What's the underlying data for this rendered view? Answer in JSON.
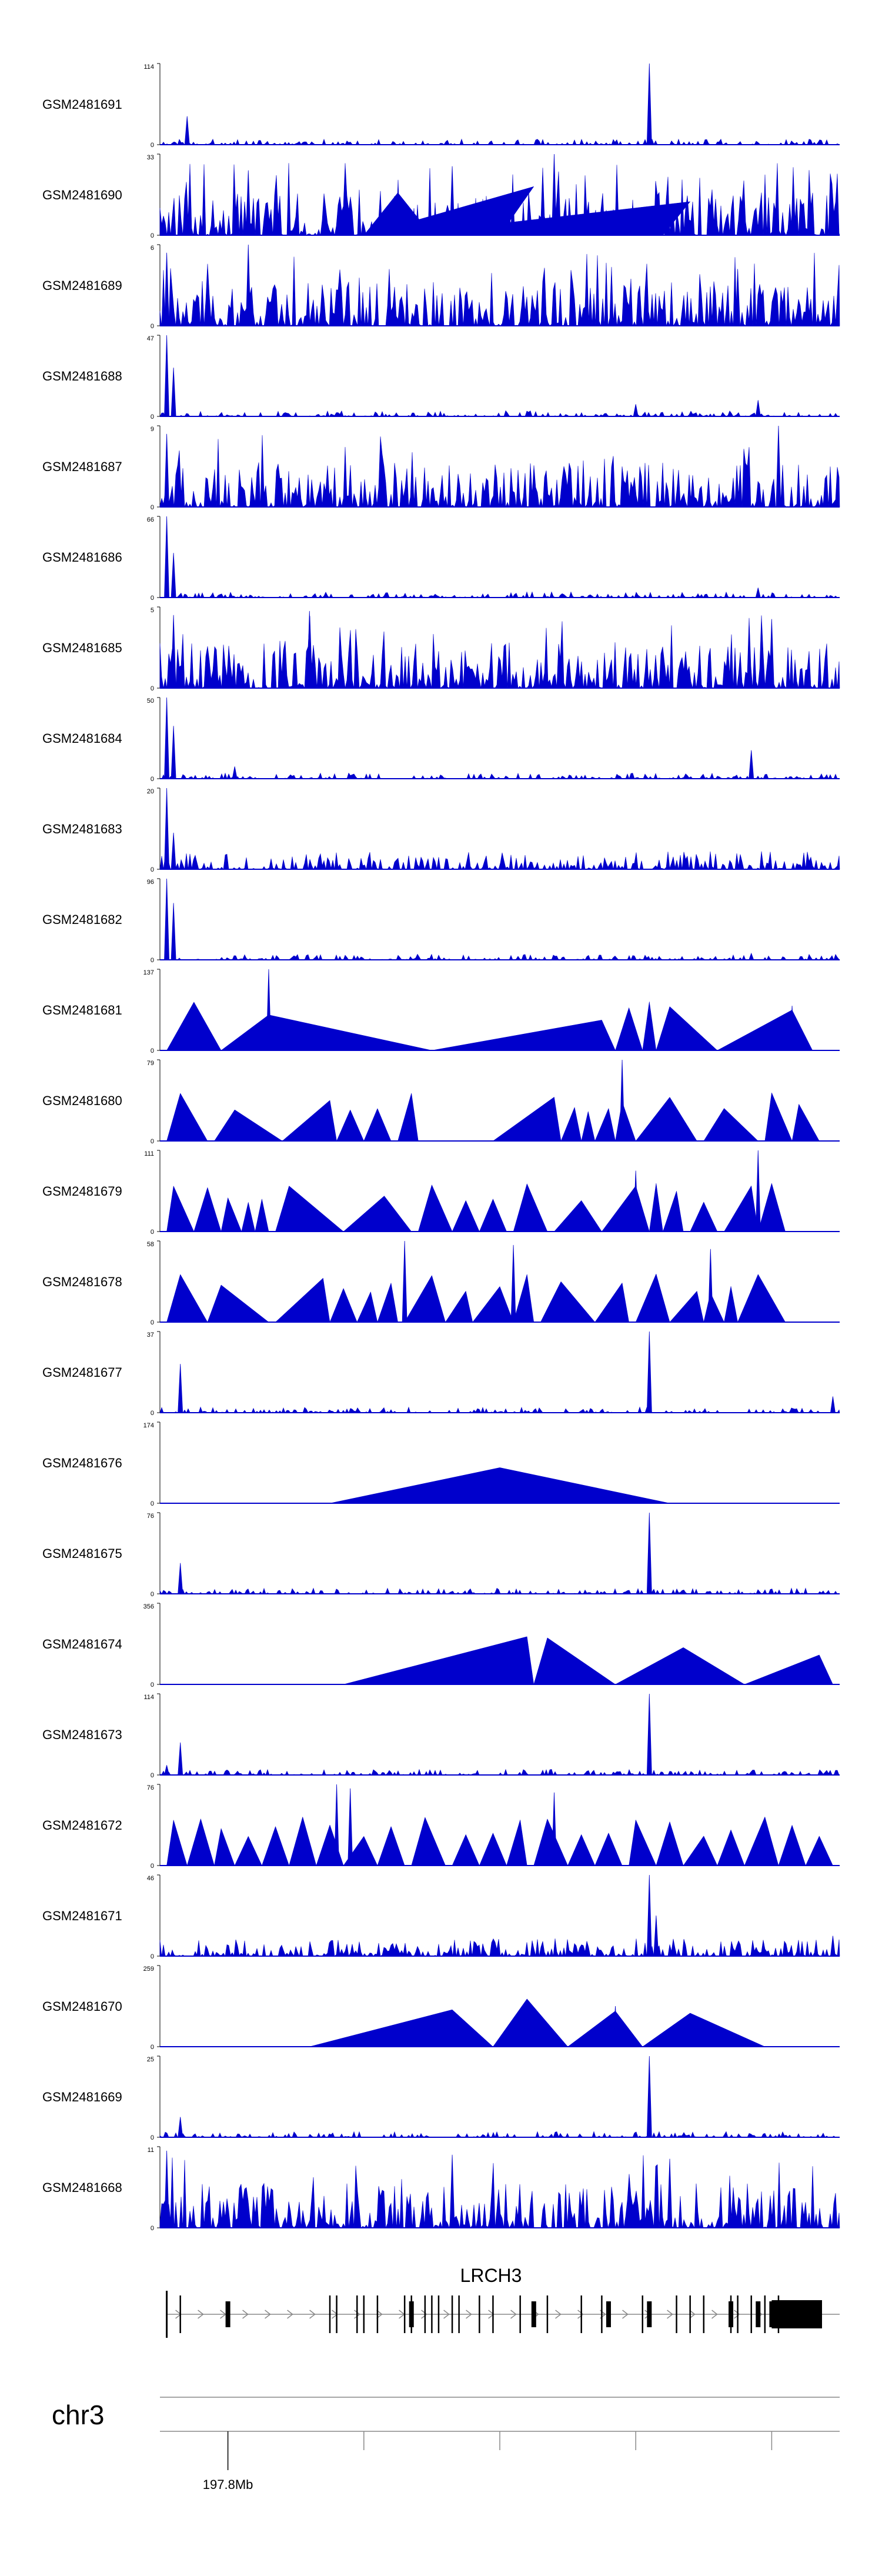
{
  "chart_data": {
    "type": "area",
    "title": "",
    "xlabel": "",
    "ylabel": "",
    "fill_color": "#0000cc",
    "tracks": [
      {
        "name": "GSM2481691",
        "ymin": "0",
        "ymax": "114",
        "pattern": "sparse",
        "spikes": [
          [
            0.04,
            0.35
          ],
          [
            0.72,
            1.0
          ]
        ],
        "triangles": []
      },
      {
        "name": "GSM2481690",
        "ymin": "0",
        "ymax": "33",
        "pattern": "dense",
        "spikes": [
          [
            0.58,
            1.0
          ],
          [
            0.43,
            0.85
          ],
          [
            0.13,
            0.8
          ]
        ],
        "triangles": [
          [
            0.3,
            0.35,
            0.4
          ],
          [
            0.5,
            0.55,
            0.3
          ],
          [
            0.74,
            0.78,
            0.35
          ]
        ]
      },
      {
        "name": "GSM2481689",
        "ymin": "0",
        "ymax": "6",
        "pattern": "dense",
        "spikes": [
          [
            0.13,
            1.0
          ],
          [
            0.01,
            0.9
          ],
          [
            0.85,
            0.7
          ]
        ],
        "triangles": []
      },
      {
        "name": "GSM2481688",
        "ymin": "0",
        "ymax": "47",
        "pattern": "sparse",
        "spikes": [
          [
            0.01,
            1.0
          ],
          [
            0.02,
            0.6
          ],
          [
            0.7,
            0.15
          ],
          [
            0.88,
            0.2
          ]
        ],
        "triangles": []
      },
      {
        "name": "GSM2481687",
        "ymin": "0",
        "ymax": "9",
        "pattern": "dense",
        "spikes": [
          [
            0.01,
            0.9
          ],
          [
            0.91,
            1.0
          ]
        ],
        "triangles": []
      },
      {
        "name": "GSM2481686",
        "ymin": "0",
        "ymax": "66",
        "pattern": "sparse",
        "spikes": [
          [
            0.01,
            1.0
          ],
          [
            0.02,
            0.55
          ],
          [
            0.88,
            0.12
          ]
        ],
        "triangles": []
      },
      {
        "name": "GSM2481685",
        "ymin": "0",
        "ymax": "5",
        "pattern": "dense",
        "spikes": [
          [
            0.02,
            0.9
          ],
          [
            0.22,
            0.95
          ],
          [
            0.9,
            0.85
          ]
        ],
        "triangles": []
      },
      {
        "name": "GSM2481684",
        "ymin": "0",
        "ymax": "50",
        "pattern": "sparse",
        "spikes": [
          [
            0.01,
            1.0
          ],
          [
            0.02,
            0.65
          ],
          [
            0.11,
            0.15
          ],
          [
            0.87,
            0.35
          ]
        ],
        "triangles": []
      },
      {
        "name": "GSM2481683",
        "ymin": "0",
        "ymax": "20",
        "pattern": "medium",
        "spikes": [
          [
            0.01,
            1.0
          ],
          [
            0.02,
            0.45
          ]
        ],
        "triangles": []
      },
      {
        "name": "GSM2481682",
        "ymin": "0",
        "ymax": "96",
        "pattern": "sparse",
        "spikes": [
          [
            0.01,
            1.0
          ],
          [
            0.02,
            0.7
          ],
          [
            0.87,
            0.08
          ]
        ],
        "triangles": []
      },
      {
        "name": "GSM2481681",
        "ymin": "0",
        "ymax": "137",
        "pattern": "none",
        "spikes": [
          [
            0.16,
            1.0
          ],
          [
            0.93,
            0.55
          ]
        ],
        "triangles": [
          [
            0.01,
            0.05,
            0.09
          ],
          [
            0.09,
            0.16,
            0.4
          ],
          [
            0.4,
            0.65,
            0.67
          ],
          [
            0.67,
            0.69,
            0.71
          ],
          [
            0.71,
            0.72,
            0.73
          ],
          [
            0.73,
            0.75,
            0.82
          ],
          [
            0.82,
            0.93,
            0.96
          ]
        ]
      },
      {
        "name": "GSM2481680",
        "ymin": "0",
        "ymax": "79",
        "pattern": "none",
        "spikes": [
          [
            0.68,
            1.0
          ],
          [
            0.37,
            0.55
          ]
        ],
        "triangles": [
          [
            0.01,
            0.03,
            0.07
          ],
          [
            0.08,
            0.11,
            0.18
          ],
          [
            0.18,
            0.25,
            0.26
          ],
          [
            0.26,
            0.28,
            0.3
          ],
          [
            0.3,
            0.32,
            0.34
          ],
          [
            0.35,
            0.37,
            0.38
          ],
          [
            0.49,
            0.58,
            0.59
          ],
          [
            0.59,
            0.61,
            0.62
          ],
          [
            0.62,
            0.63,
            0.64
          ],
          [
            0.64,
            0.66,
            0.67
          ],
          [
            0.67,
            0.68,
            0.7
          ],
          [
            0.7,
            0.75,
            0.79
          ],
          [
            0.8,
            0.83,
            0.88
          ],
          [
            0.89,
            0.9,
            0.93
          ],
          [
            0.93,
            0.94,
            0.97
          ]
        ]
      },
      {
        "name": "GSM2481679",
        "ymin": "0",
        "ymax": "111",
        "pattern": "none",
        "spikes": [
          [
            0.88,
            1.0
          ],
          [
            0.7,
            0.75
          ]
        ],
        "triangles": [
          [
            0.01,
            0.02,
            0.05
          ],
          [
            0.05,
            0.07,
            0.09
          ],
          [
            0.09,
            0.1,
            0.12
          ],
          [
            0.12,
            0.13,
            0.14
          ],
          [
            0.14,
            0.15,
            0.16
          ],
          [
            0.17,
            0.19,
            0.27
          ],
          [
            0.27,
            0.33,
            0.37
          ],
          [
            0.38,
            0.4,
            0.43
          ],
          [
            0.43,
            0.45,
            0.47
          ],
          [
            0.47,
            0.49,
            0.51
          ],
          [
            0.52,
            0.54,
            0.57
          ],
          [
            0.58,
            0.62,
            0.65
          ],
          [
            0.65,
            0.7,
            0.72
          ],
          [
            0.72,
            0.73,
            0.74
          ],
          [
            0.74,
            0.76,
            0.77
          ],
          [
            0.78,
            0.8,
            0.82
          ],
          [
            0.83,
            0.87,
            0.88
          ],
          [
            0.88,
            0.9,
            0.92
          ]
        ]
      },
      {
        "name": "GSM2481678",
        "ymin": "0",
        "ymax": "58",
        "pattern": "none",
        "spikes": [
          [
            0.36,
            1.0
          ],
          [
            0.52,
            0.95
          ],
          [
            0.81,
            0.9
          ]
        ],
        "triangles": [
          [
            0.01,
            0.03,
            0.07
          ],
          [
            0.07,
            0.09,
            0.16
          ],
          [
            0.17,
            0.24,
            0.25
          ],
          [
            0.25,
            0.27,
            0.29
          ],
          [
            0.29,
            0.31,
            0.32
          ],
          [
            0.32,
            0.34,
            0.35
          ],
          [
            0.36,
            0.4,
            0.42
          ],
          [
            0.42,
            0.45,
            0.46
          ],
          [
            0.46,
            0.5,
            0.52
          ],
          [
            0.52,
            0.54,
            0.55
          ],
          [
            0.56,
            0.59,
            0.64
          ],
          [
            0.64,
            0.68,
            0.69
          ],
          [
            0.7,
            0.73,
            0.75
          ],
          [
            0.75,
            0.79,
            0.8
          ],
          [
            0.8,
            0.81,
            0.83
          ],
          [
            0.83,
            0.84,
            0.85
          ],
          [
            0.85,
            0.88,
            0.92
          ]
        ]
      },
      {
        "name": "GSM2481677",
        "ymin": "0",
        "ymax": "37",
        "pattern": "sparse",
        "spikes": [
          [
            0.03,
            0.6
          ],
          [
            0.72,
            1.0
          ],
          [
            0.99,
            0.2
          ]
        ],
        "triangles": []
      },
      {
        "name": "GSM2481676",
        "ymin": "0",
        "ymax": "174",
        "pattern": "none",
        "spikes": [],
        "triangles": [
          [
            0.25,
            0.5,
            0.75
          ]
        ]
      },
      {
        "name": "GSM2481675",
        "ymin": "0",
        "ymax": "76",
        "pattern": "sparse",
        "spikes": [
          [
            0.03,
            0.38
          ],
          [
            0.72,
            1.0
          ]
        ],
        "triangles": []
      },
      {
        "name": "GSM2481674",
        "ymin": "0",
        "ymax": "356",
        "pattern": "none",
        "spikes": [],
        "triangles": [
          [
            0.27,
            0.54,
            0.55
          ],
          [
            0.55,
            0.57,
            0.67
          ],
          [
            0.67,
            0.77,
            0.86
          ],
          [
            0.86,
            0.97,
            0.99
          ]
        ]
      },
      {
        "name": "GSM2481673",
        "ymin": "0",
        "ymax": "114",
        "pattern": "sparse",
        "spikes": [
          [
            0.72,
            1.0
          ],
          [
            0.03,
            0.4
          ],
          [
            0.01,
            0.12
          ]
        ],
        "triangles": []
      },
      {
        "name": "GSM2481672",
        "ymin": "0",
        "ymax": "76",
        "pattern": "none",
        "spikes": [
          [
            0.26,
            1.0
          ],
          [
            0.28,
            0.95
          ],
          [
            0.58,
            0.9
          ]
        ],
        "triangles": [
          [
            0.01,
            0.02,
            0.04
          ],
          [
            0.04,
            0.06,
            0.08
          ],
          [
            0.08,
            0.09,
            0.11
          ],
          [
            0.11,
            0.13,
            0.15
          ],
          [
            0.15,
            0.17,
            0.19
          ],
          [
            0.19,
            0.21,
            0.23
          ],
          [
            0.23,
            0.25,
            0.27
          ],
          [
            0.27,
            0.3,
            0.32
          ],
          [
            0.32,
            0.34,
            0.36
          ],
          [
            0.37,
            0.39,
            0.42
          ],
          [
            0.43,
            0.45,
            0.47
          ],
          [
            0.47,
            0.49,
            0.51
          ],
          [
            0.51,
            0.53,
            0.54
          ],
          [
            0.55,
            0.57,
            0.6
          ],
          [
            0.6,
            0.62,
            0.64
          ],
          [
            0.64,
            0.66,
            0.68
          ],
          [
            0.69,
            0.7,
            0.73
          ],
          [
            0.73,
            0.75,
            0.77
          ],
          [
            0.77,
            0.8,
            0.82
          ],
          [
            0.82,
            0.84,
            0.86
          ],
          [
            0.86,
            0.89,
            0.91
          ],
          [
            0.91,
            0.93,
            0.95
          ],
          [
            0.95,
            0.97,
            0.99
          ]
        ]
      },
      {
        "name": "GSM2481671",
        "ymin": "0",
        "ymax": "46",
        "pattern": "medium",
        "spikes": [
          [
            0.72,
            1.0
          ],
          [
            0.73,
            0.5
          ],
          [
            0.99,
            0.25
          ]
        ],
        "triangles": []
      },
      {
        "name": "GSM2481670",
        "ymin": "0",
        "ymax": "259",
        "pattern": "none",
        "spikes": [
          [
            0.67,
            0.5
          ]
        ],
        "triangles": [
          [
            0.22,
            0.43,
            0.49
          ],
          [
            0.49,
            0.54,
            0.6
          ],
          [
            0.6,
            0.67,
            0.71
          ],
          [
            0.71,
            0.78,
            0.89
          ]
        ]
      },
      {
        "name": "GSM2481669",
        "ymin": "0",
        "ymax": "25",
        "pattern": "sparse",
        "spikes": [
          [
            0.72,
            1.0
          ],
          [
            0.03,
            0.25
          ]
        ],
        "triangles": []
      },
      {
        "name": "GSM2481668",
        "ymin": "0",
        "ymax": "11",
        "pattern": "dense",
        "spikes": [
          [
            0.01,
            0.95
          ],
          [
            0.43,
            0.9
          ],
          [
            0.75,
            0.85
          ]
        ],
        "triangles": []
      }
    ],
    "gene_track": {
      "gene_name": "LRCH3",
      "exons_thin": [
        0.03,
        0.25,
        0.26,
        0.29,
        0.3,
        0.32,
        0.36,
        0.37,
        0.39,
        0.4,
        0.41,
        0.43,
        0.44,
        0.47,
        0.49,
        0.53,
        0.57,
        0.62,
        0.65,
        0.71,
        0.76,
        0.78,
        0.8,
        0.84,
        0.85,
        0.87,
        0.89,
        0.91
      ],
      "exons_thick": [
        0.1,
        0.37,
        0.55,
        0.66,
        0.72,
        0.84,
        0.88,
        0.9
      ],
      "utr_start": 0.9,
      "utr_end": 1.0
    },
    "ideogram": {
      "chromosome": "chr3",
      "tick_label": "197.8Mb",
      "ticks": [
        0.1,
        0.3,
        0.5,
        0.7,
        0.9
      ]
    }
  }
}
